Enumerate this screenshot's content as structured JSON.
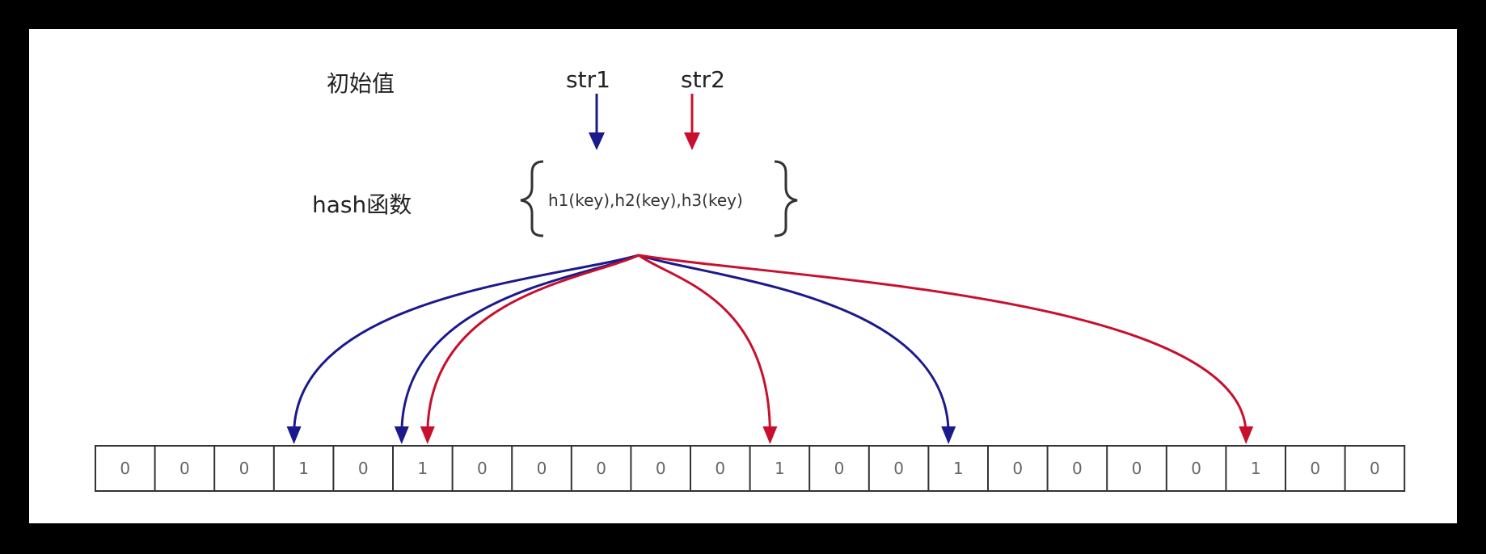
{
  "labels": {
    "initial_value": "初始值",
    "hash_functions_row": "hash函数",
    "str1": "str1",
    "str2": "str2",
    "hash_functions": "h1(key),h2(key),h3(key)"
  },
  "colors": {
    "str1": "#1a1a8c",
    "str2": "#c8102e",
    "cell_border": "#333333"
  },
  "bit_array": [
    "0",
    "0",
    "0",
    "1",
    "0",
    "1",
    "0",
    "0",
    "0",
    "0",
    "0",
    "1",
    "0",
    "0",
    "1",
    "0",
    "0",
    "0",
    "0",
    "1",
    "0",
    "0"
  ],
  "mappings": [
    {
      "source": "str1",
      "bit_index": 3
    },
    {
      "source": "str1",
      "bit_index": 5
    },
    {
      "source": "str1",
      "bit_index": 14
    },
    {
      "source": "str2",
      "bit_index": 5
    },
    {
      "source": "str2",
      "bit_index": 11
    },
    {
      "source": "str2",
      "bit_index": 19
    }
  ]
}
